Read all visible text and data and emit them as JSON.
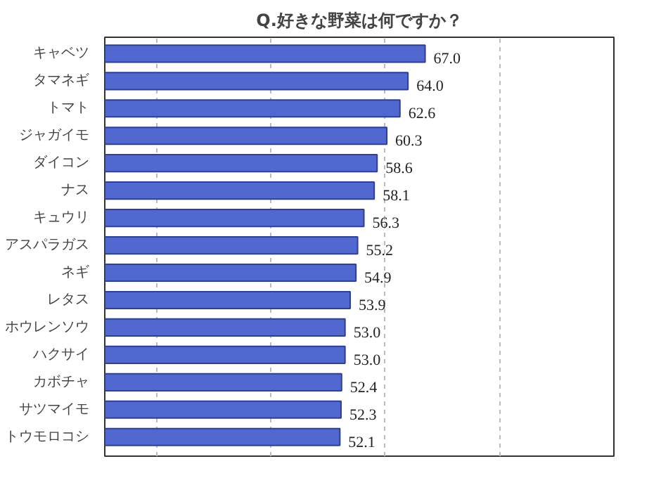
{
  "chart_data": {
    "type": "bar",
    "orientation": "horizontal",
    "title": "Q.好きな野菜は何ですか？",
    "categories": [
      "キャベツ",
      "タマネギ",
      "トマト",
      "ジャガイモ",
      "ダイコン",
      "ナス",
      "キュウリ",
      "アスパラガス",
      "ネギ",
      "レタス",
      "ホウレンソウ",
      "ハクサイ",
      "カボチャ",
      "サツマイモ",
      "トウモロコシ"
    ],
    "values": [
      67.0,
      64.0,
      62.6,
      60.3,
      58.6,
      58.1,
      56.3,
      55.2,
      54.9,
      53.9,
      53.0,
      53.0,
      52.4,
      52.3,
      52.1
    ],
    "color": "#5068d0",
    "xlim": [
      11,
      100
    ],
    "xticks": [
      {
        "value": 20,
        "label": null
      },
      {
        "value": 40,
        "label": null
      },
      {
        "value": 60,
        "label": null
      },
      {
        "value": 80,
        "label": null
      }
    ],
    "value_labels": [
      "67.0",
      "64.0",
      "62.6",
      "60.3",
      "58.6",
      "58.1",
      "56.3",
      "55.2",
      "54.9",
      "53.9",
      "53.0",
      "53.0",
      "52.4",
      "52.3",
      "52.1"
    ],
    "grid": "x",
    "tick_labels": "y"
  }
}
